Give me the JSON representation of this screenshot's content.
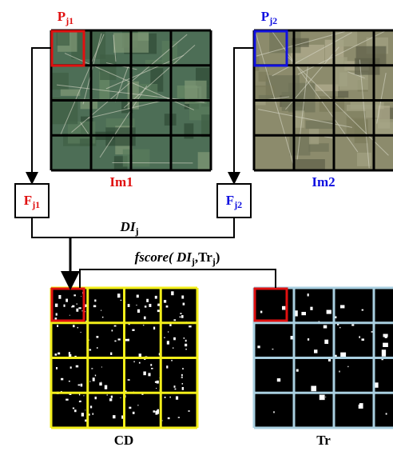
{
  "nodes": {
    "p_j1": {
      "base": "P",
      "sub": "j1"
    },
    "p_j2": {
      "base": "P",
      "sub": "j2"
    },
    "im1": "Im1",
    "im2": "Im2",
    "f_j1": {
      "base": "F",
      "sub": "j1"
    },
    "f_j2": {
      "base": "F",
      "sub": "j2"
    },
    "di": {
      "base": "DI",
      "sub": "j"
    },
    "fscore": {
      "parts": [
        "fscore( ",
        "DI",
        "j",
        ",Tr",
        "j",
        ")"
      ]
    },
    "cd": "CD",
    "tr": "Tr"
  }
}
